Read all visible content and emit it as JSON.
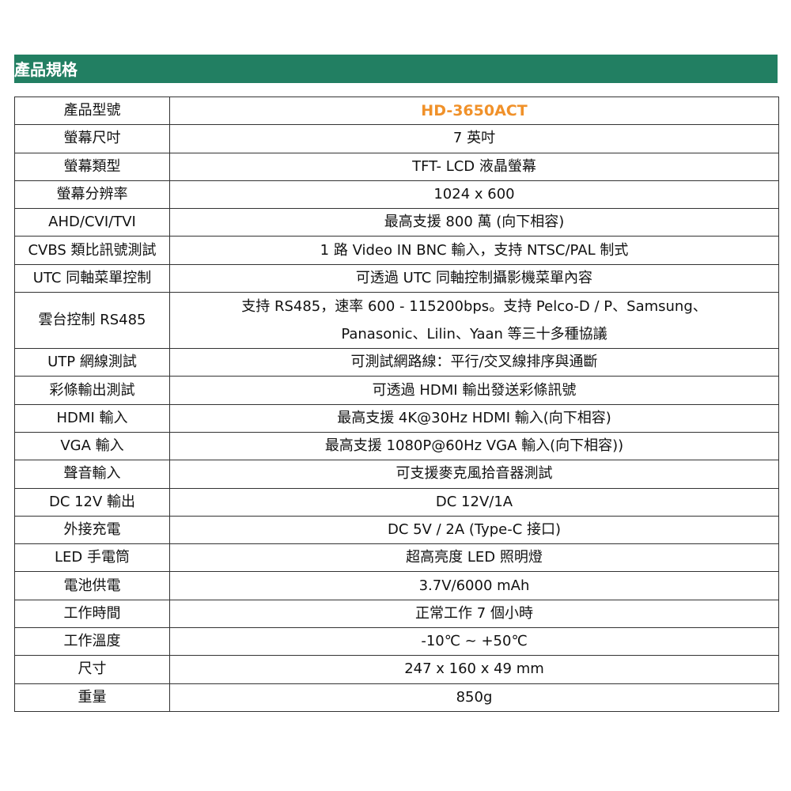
{
  "section_title": "產品規格",
  "accent_color": "#227f62",
  "model_color": "#f0912a",
  "specs": [
    {
      "label": "產品型號",
      "value": "HD-3650ACT"
    },
    {
      "label": "螢幕尺吋",
      "value": "7 英吋"
    },
    {
      "label": "螢幕類型",
      "value": "TFT- LCD 液晶螢幕"
    },
    {
      "label": "螢幕分辨率",
      "value": "1024 x 600"
    },
    {
      "label": "AHD/CVI/TVI",
      "value": "最高支援 800 萬 (向下相容)"
    },
    {
      "label": "CVBS 類比訊號測試",
      "value": "1 路 Video IN BNC 輸入，支持 NTSC/PAL 制式"
    },
    {
      "label": "UTC 同軸菜單控制",
      "value": "可透過 UTC 同軸控制攝影機菜單內容"
    },
    {
      "label": "雲台控制 RS485",
      "value": "支持 RS485，速率 600 - 115200bps。支持 Pelco-D / P、Samsung、",
      "value2": "Panasonic、Lilin、Yaan 等三十多種協議"
    },
    {
      "label": "UTP 網線測試",
      "value": "可測試網路線：平行/交叉線排序與通斷"
    },
    {
      "label": "彩條輸出測試",
      "value": "可透過 HDMI 輸出發送彩條訊號"
    },
    {
      "label": "HDMI 輸入",
      "value": "最高支援 4K@30Hz HDMI 輸入(向下相容)"
    },
    {
      "label": "VGA 輸入",
      "value": "最高支援 1080P@60Hz VGA 輸入(向下相容))"
    },
    {
      "label": "聲音輸入",
      "value": "可支援麥克風拾音器測試"
    },
    {
      "label": "DC 12V 輸出",
      "value": "DC 12V/1A"
    },
    {
      "label": "外接充電",
      "value": "DC 5V / 2A (Type-C 接口)"
    },
    {
      "label": "LED 手電筒",
      "value": "超高亮度 LED 照明燈"
    },
    {
      "label": "電池供電",
      "value": "3.7V/6000 mAh"
    },
    {
      "label": "工作時間",
      "value": "正常工作 7 個小時"
    },
    {
      "label": "工作溫度",
      "value": "-10℃ ~ +50℃"
    },
    {
      "label": "尺寸",
      "value": "247 x 160 x 49 mm"
    },
    {
      "label": "重量",
      "value": "850g"
    }
  ]
}
